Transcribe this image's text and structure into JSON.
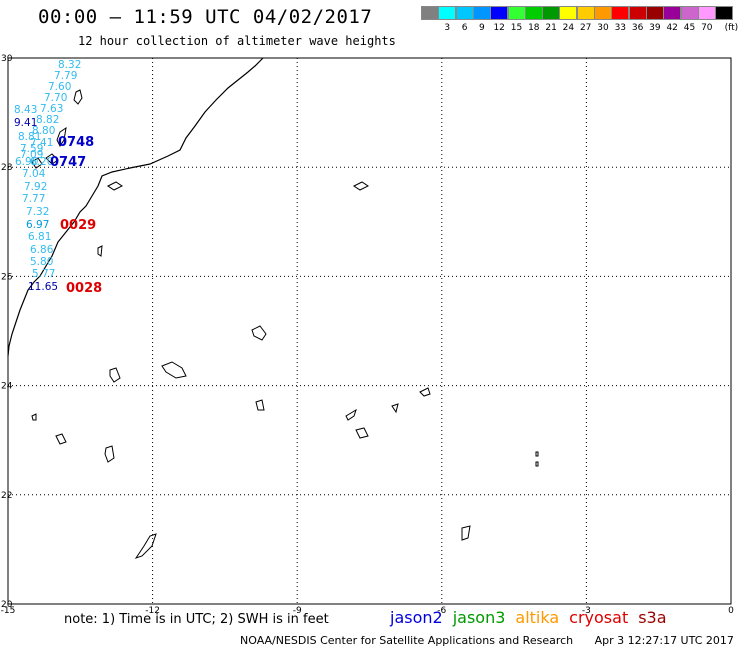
{
  "title": "00:00 — 11:59 UTC 04/02/2017",
  "subtitle": "12 hour collection of altimeter wave heights",
  "legend": {
    "unit": "(ft)",
    "items": [
      {
        "label": "",
        "color": "#808080"
      },
      {
        "label": "3",
        "color": "#00ffff"
      },
      {
        "label": "6",
        "color": "#00c8ff"
      },
      {
        "label": "9",
        "color": "#0096ff"
      },
      {
        "label": "12",
        "color": "#0000ff"
      },
      {
        "label": "15",
        "color": "#33ff33"
      },
      {
        "label": "18",
        "color": "#00cc00"
      },
      {
        "label": "21",
        "color": "#009900"
      },
      {
        "label": "24",
        "color": "#ffff00"
      },
      {
        "label": "27",
        "color": "#ffcc00"
      },
      {
        "label": "30",
        "color": "#ff9900"
      },
      {
        "label": "33",
        "color": "#ff0000"
      },
      {
        "label": "36",
        "color": "#cc0000"
      },
      {
        "label": "39",
        "color": "#990000"
      },
      {
        "label": "42",
        "color": "#990099"
      },
      {
        "label": "45",
        "color": "#cc66cc"
      },
      {
        "label": "70",
        "color": "#ff99ff"
      },
      {
        "label": "",
        "color": "#000000"
      }
    ]
  },
  "map": {
    "lon_min": -15,
    "lon_max": 0,
    "lat_min": 20,
    "lat_max": 30,
    "lon_labels": [
      "-15",
      "-12",
      "-9",
      "-6",
      "-3",
      "0"
    ],
    "lat_labels": [
      "30",
      "28",
      "26",
      "24",
      "22",
      "20"
    ]
  },
  "wave_heights": [
    {
      "text": "8.32",
      "color": "#33bbee"
    },
    {
      "text": "7.79",
      "color": "#33bbee"
    },
    {
      "text": "7.60",
      "color": "#33bbee"
    },
    {
      "text": "7.70",
      "color": "#33bbee"
    },
    {
      "text": "8.43",
      "color": "#33bbee"
    },
    {
      "text": "7.63",
      "color": "#33bbee"
    },
    {
      "text": "8.82",
      "color": "#33bbee"
    },
    {
      "text": "9.41",
      "color": "#0000aa"
    },
    {
      "text": "8.80",
      "color": "#33bbee"
    },
    {
      "text": "8.81",
      "color": "#33bbee"
    },
    {
      "text": "7.41",
      "color": "#33bbee"
    },
    {
      "text": "7.59",
      "color": "#33bbee"
    },
    {
      "text": "7.09",
      "color": "#33bbee"
    },
    {
      "text": "6.90",
      "color": "#33bbee"
    },
    {
      "text": "6.20",
      "color": "#33bbee"
    },
    {
      "text": "7.04",
      "color": "#33bbee"
    },
    {
      "text": "7.92",
      "color": "#33bbee"
    },
    {
      "text": "7.77",
      "color": "#33bbee"
    },
    {
      "text": "7.32",
      "color": "#33bbee"
    },
    {
      "text": "6.97",
      "color": "#0099dd"
    },
    {
      "text": "6.81",
      "color": "#33bbee"
    },
    {
      "text": "6.86",
      "color": "#33bbee"
    },
    {
      "text": "5.80",
      "color": "#33bbee"
    },
    {
      "text": "5.77",
      "color": "#33bbee"
    },
    {
      "text": "11.65",
      "color": "#0000aa"
    }
  ],
  "passes": [
    {
      "text": "0748",
      "color": "#0000cc"
    },
    {
      "text": "0747",
      "color": "#0000cc"
    },
    {
      "text": "0029",
      "color": "#dd0000"
    },
    {
      "text": "0028",
      "color": "#dd0000"
    }
  ],
  "note": "note: 1) Time is in UTC; 2) SWH is in feet",
  "satellites": [
    {
      "name": "jason2",
      "color": "#0000dd"
    },
    {
      "name": "jason3",
      "color": "#009900"
    },
    {
      "name": "altika",
      "color": "#ff9900"
    },
    {
      "name": "cryosat",
      "color": "#dd0000"
    },
    {
      "name": "s3a",
      "color": "#990000"
    }
  ],
  "credit": "NOAA/NESDIS Center for Satellite Applications and Research",
  "credit_date": "Apr  3 12:27:17 UTC 2017"
}
